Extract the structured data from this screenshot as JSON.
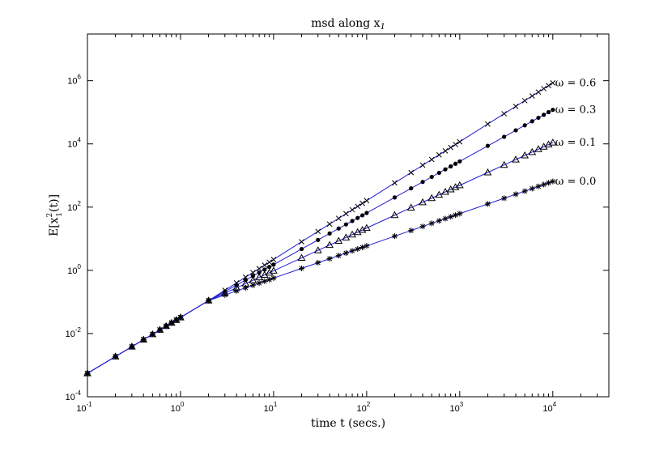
{
  "chart_data": {
    "type": "line",
    "title": "msd along x",
    "title_subscript": "1",
    "xlabel": "time t (secs.)",
    "ylabel": "E[x",
    "ylabel_sub": "1",
    "ylabel_sup": "2",
    "ylabel_tail": "(t)]",
    "x_scale": "log",
    "y_scale": "log",
    "xlim": [
      0.1,
      40000
    ],
    "ylim": [
      0.0001,
      30000000
    ],
    "x_ticks": [
      {
        "base": "10",
        "exp": "-1",
        "value": 0.1
      },
      {
        "base": "10",
        "exp": "0",
        "value": 1
      },
      {
        "base": "10",
        "exp": "1",
        "value": 10
      },
      {
        "base": "10",
        "exp": "2",
        "value": 100
      },
      {
        "base": "10",
        "exp": "3",
        "value": 1000
      },
      {
        "base": "10",
        "exp": "4",
        "value": 10000
      }
    ],
    "y_ticks": [
      {
        "base": "10",
        "exp": "-4",
        "value": 0.0001
      },
      {
        "base": "10",
        "exp": "-2",
        "value": 0.01
      },
      {
        "base": "10",
        "exp": "0",
        "value": 1
      },
      {
        "base": "10",
        "exp": "2",
        "value": 100
      },
      {
        "base": "10",
        "exp": "4",
        "value": 10000
      },
      {
        "base": "10",
        "exp": "6",
        "value": 1000000
      }
    ],
    "grid": false,
    "line_color": "#1f1fd0",
    "series": [
      {
        "label": "ω = 0.6",
        "marker": "x",
        "x0": 0.1,
        "y0": 0.00055,
        "x1": 10000,
        "y1": 850000
      },
      {
        "label": "ω = 0.3",
        "marker": "dot",
        "x0": 0.1,
        "y0": 0.00055,
        "x1": 10000,
        "y1": 120000
      },
      {
        "label": "ω = 0.1",
        "marker": "triangle",
        "x0": 0.1,
        "y0": 0.00055,
        "x1": 10000,
        "y1": 11000
      },
      {
        "label": "ω = 0.0",
        "marker": "star",
        "x0": 0.1,
        "y0": 0.00055,
        "x1": 10000,
        "y1": 650
      }
    ]
  }
}
